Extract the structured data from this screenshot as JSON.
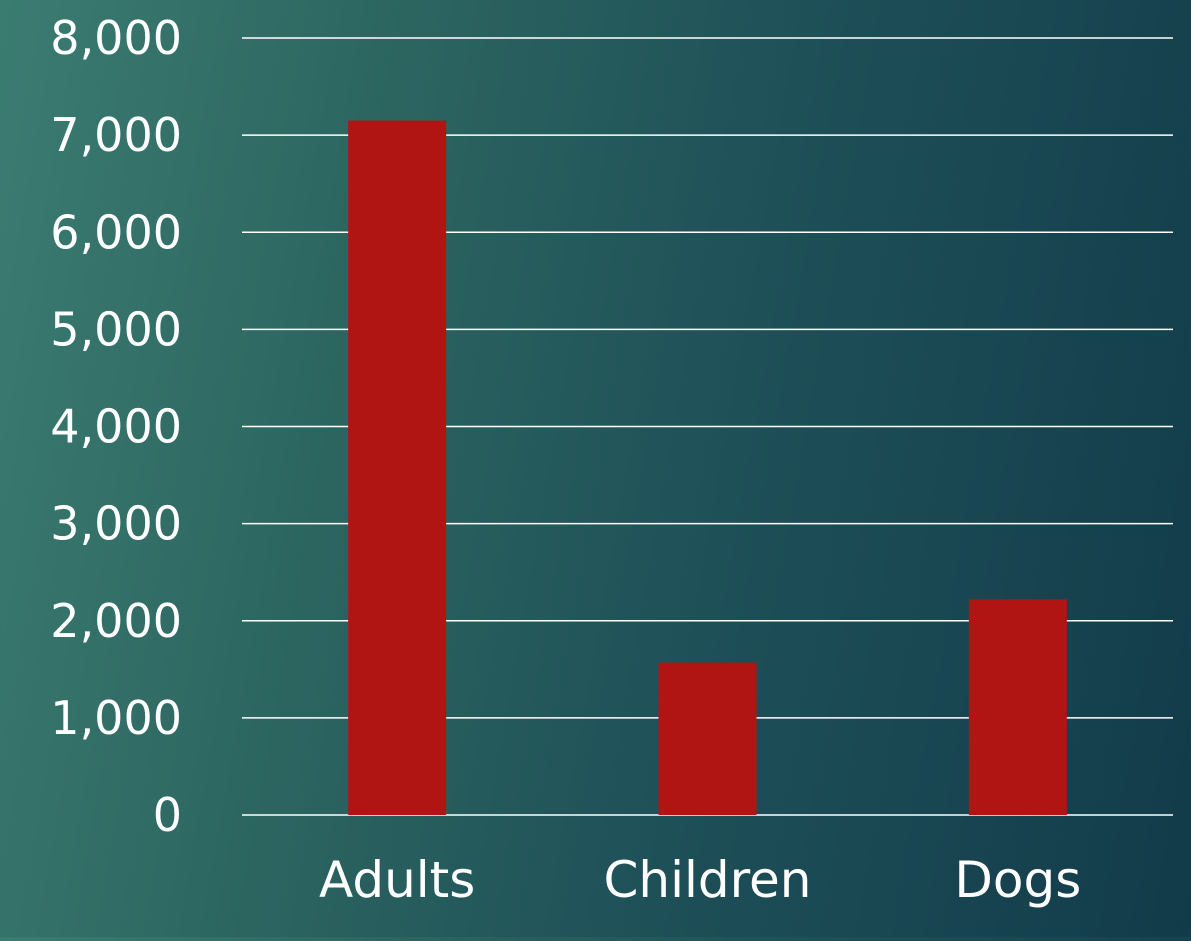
{
  "chart_data": {
    "type": "bar",
    "categories": [
      "Adults",
      "Children",
      "Dogs"
    ],
    "values": [
      7150,
      1570,
      2220
    ],
    "ylim": [
      0,
      8000
    ],
    "y_ticks": [
      0,
      1000,
      2000,
      3000,
      4000,
      5000,
      6000,
      7000,
      8000
    ],
    "y_tick_labels": [
      "0",
      "1,000",
      "2,000",
      "3,000",
      "4,000",
      "5,000",
      "6,000",
      "7,000",
      "8,000"
    ],
    "grid": true,
    "legend": "none",
    "bar_color": "#b01513",
    "grid_color": "#ffffff",
    "text_color": "#ffffff"
  }
}
